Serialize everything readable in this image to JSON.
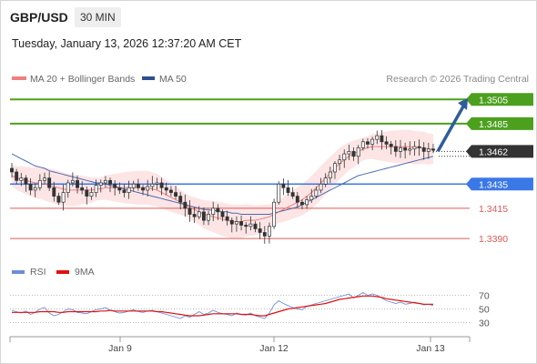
{
  "header": {
    "symbol": "GBP/USD",
    "timeframe": "30 MIN",
    "datetime": "Tuesday, January 13, 2026 12:37:20 AM CET"
  },
  "legend": {
    "ma20_label": "MA 20 + Bollinger Bands",
    "ma50_label": "MA 50",
    "credit": "Research © 2026 Trading Central",
    "rsi_label": "RSI",
    "rsi_ma_label": "9MA"
  },
  "colors": {
    "ma20": "#f08080",
    "bollinger_fill": "#fde0e0",
    "ma50": "#4a6bb0",
    "resistance": "#4ca01e",
    "pivot": "#3b78e7",
    "support": "#e05a5a",
    "last_price_bg": "#333333",
    "arrow": "#2f5d9a",
    "rsi": "#6b8fd6",
    "rsi_ma": "#e01010"
  },
  "chart_data": [
    {
      "type": "line",
      "subtype": "candlestick",
      "x_labels": [
        "Jan 9",
        "Jan 12",
        "Jan 13"
      ],
      "ylim": [
        1.3375,
        1.3515
      ],
      "last_price": 1.3462,
      "levels": [
        {
          "value": 1.3505,
          "label": "1.3505",
          "kind": "resistance"
        },
        {
          "value": 1.3485,
          "label": "1.3485",
          "kind": "resistance"
        },
        {
          "value": 1.3435,
          "label": "1.3435",
          "kind": "pivot"
        },
        {
          "value": 1.3415,
          "label": "1.3415",
          "kind": "support"
        },
        {
          "value": 1.339,
          "label": "1.3390",
          "kind": "support"
        }
      ],
      "last_price_label": "1.3462",
      "closes": [
        1.3445,
        1.3438,
        1.344,
        1.3435,
        1.343,
        1.3432,
        1.3438,
        1.344,
        1.3432,
        1.3425,
        1.342,
        1.3428,
        1.3436,
        1.3438,
        1.3432,
        1.343,
        1.3425,
        1.3428,
        1.3434,
        1.3436,
        1.3438,
        1.3435,
        1.3432,
        1.343,
        1.3428,
        1.3432,
        1.3435,
        1.3432,
        1.343,
        1.3433,
        1.3435,
        1.3436,
        1.3432,
        1.343,
        1.3428,
        1.3425,
        1.342,
        1.3415,
        1.341,
        1.3408,
        1.3412,
        1.3405,
        1.341,
        1.3415,
        1.3412,
        1.3408,
        1.3405,
        1.3402,
        1.3404,
        1.3401,
        1.34,
        1.3402,
        1.3398,
        1.3395,
        1.3392,
        1.34,
        1.342,
        1.3435,
        1.3432,
        1.3428,
        1.3425,
        1.342,
        1.3418,
        1.3422,
        1.3425,
        1.343,
        1.3435,
        1.344,
        1.3445,
        1.3452,
        1.3455,
        1.346,
        1.3462,
        1.3458,
        1.3465,
        1.347,
        1.3468,
        1.3472,
        1.3475,
        1.347,
        1.3468,
        1.3466,
        1.3462,
        1.3465,
        1.3463,
        1.3464,
        1.3466,
        1.3465,
        1.3462,
        1.3464,
        1.3463
      ],
      "ma20": [
        1.3442,
        1.344,
        1.3439,
        1.3438,
        1.3437,
        1.3436,
        1.3436,
        1.3435,
        1.3434,
        1.3433,
        1.3432,
        1.3431,
        1.343,
        1.343,
        1.343,
        1.343,
        1.343,
        1.343,
        1.3431,
        1.3431,
        1.3432,
        1.3432,
        1.3432,
        1.3432,
        1.3432,
        1.3432,
        1.3432,
        1.3432,
        1.3432,
        1.3432,
        1.3431,
        1.343,
        1.3428,
        1.3426,
        1.3424,
        1.3422,
        1.342,
        1.3418,
        1.3416,
        1.3414,
        1.3412,
        1.341,
        1.3409,
        1.3408,
        1.3407,
        1.3406,
        1.3405,
        1.3404,
        1.3404,
        1.3404,
        1.3405,
        1.3405,
        1.3405,
        1.3406,
        1.3407,
        1.3408,
        1.341,
        1.3412,
        1.3414,
        1.3416,
        1.3418,
        1.342,
        1.3422,
        1.3425,
        1.3428,
        1.3432,
        1.3436,
        1.344,
        1.3444,
        1.3448,
        1.3452,
        1.3455,
        1.3458,
        1.346,
        1.3462,
        1.3464,
        1.3465,
        1.3466,
        1.3466,
        1.3466,
        1.3466,
        1.3466,
        1.3466,
        1.3466,
        1.3466,
        1.3466,
        1.3465,
        1.3465,
        1.3465,
        1.3464,
        1.3464
      ],
      "ma50": [
        1.346,
        1.3458,
        1.3456,
        1.3454,
        1.3452,
        1.345,
        1.3449,
        1.3448,
        1.3446,
        1.3445,
        1.3444,
        1.3443,
        1.3442,
        1.3441,
        1.344,
        1.3439,
        1.3438,
        1.3437,
        1.3436,
        1.3436,
        1.3435,
        1.3434,
        1.3433,
        1.3432,
        1.3431,
        1.343,
        1.3429,
        1.3428,
        1.3427,
        1.3426,
        1.3425,
        1.3424,
        1.3423,
        1.3422,
        1.3421,
        1.342,
        1.3419,
        1.3418,
        1.3417,
        1.3416,
        1.3415,
        1.3414,
        1.3414,
        1.3413,
        1.3413,
        1.3412,
        1.3412,
        1.3411,
        1.3411,
        1.341,
        1.341,
        1.341,
        1.341,
        1.341,
        1.341,
        1.341,
        1.3411,
        1.3412,
        1.3413,
        1.3414,
        1.3415,
        1.3416,
        1.3418,
        1.342,
        1.3422,
        1.3424,
        1.3426,
        1.3428,
        1.343,
        1.3432,
        1.3434,
        1.3436,
        1.3438,
        1.344,
        1.3442,
        1.3443,
        1.3444,
        1.3445,
        1.3446,
        1.3447,
        1.3448,
        1.3449,
        1.345,
        1.3451,
        1.3452,
        1.3453,
        1.3454,
        1.3455,
        1.3456,
        1.3457,
        1.3458
      ]
    },
    {
      "type": "line",
      "title": "RSI",
      "x_labels": [
        "Jan 9",
        "Jan 12",
        "Jan 13"
      ],
      "ylim": [
        20,
        80
      ],
      "y_ticks": [
        70,
        50,
        30
      ],
      "series": [
        {
          "name": "RSI",
          "values": [
            48,
            46,
            44,
            47,
            42,
            45,
            50,
            52,
            44,
            40,
            42,
            46,
            50,
            49,
            45,
            44,
            43,
            46,
            49,
            50,
            52,
            48,
            46,
            44,
            45,
            47,
            49,
            46,
            45,
            47,
            48,
            46,
            44,
            42,
            40,
            38,
            36,
            40,
            38,
            42,
            46,
            42,
            44,
            48,
            45,
            43,
            42,
            40,
            44,
            42,
            41,
            44,
            40,
            38,
            36,
            44,
            56,
            62,
            58,
            55,
            52,
            50,
            49,
            54,
            56,
            58,
            60,
            62,
            64,
            66,
            68,
            70,
            72,
            66,
            70,
            74,
            70,
            72,
            70,
            66,
            62,
            60,
            58,
            60,
            57,
            58,
            60,
            58,
            56,
            57,
            55
          ]
        },
        {
          "name": "9MA",
          "values": [
            45,
            45,
            45,
            45,
            45,
            45,
            46,
            46,
            46,
            46,
            45,
            45,
            46,
            46,
            46,
            46,
            46,
            46,
            46,
            47,
            47,
            48,
            47,
            47,
            47,
            47,
            47,
            47,
            47,
            47,
            47,
            46,
            46,
            45,
            44,
            43,
            42,
            41,
            40,
            40,
            40,
            41,
            42,
            43,
            43,
            43,
            43,
            43,
            43,
            42,
            42,
            42,
            41,
            40,
            40,
            42,
            44,
            46,
            48,
            50,
            51,
            52,
            53,
            54,
            55,
            56,
            57,
            58,
            60,
            62,
            64,
            65,
            66,
            67,
            68,
            69,
            69,
            69,
            68,
            67,
            65,
            64,
            63,
            62,
            61,
            60,
            59,
            58,
            57,
            57,
            57
          ]
        }
      ]
    }
  ]
}
